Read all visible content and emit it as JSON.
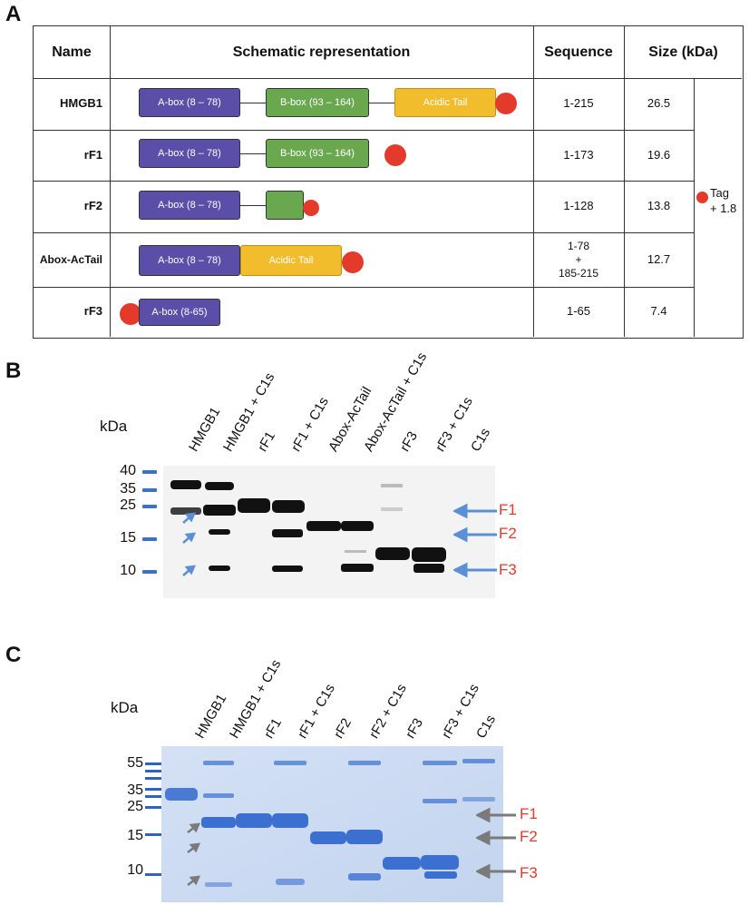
{
  "panels": {
    "a": "A",
    "b": "B",
    "c": "C"
  },
  "table": {
    "headers": {
      "name": "Name",
      "schematic": "Schematic representation",
      "sequence": "Sequence",
      "size": "Size (kDa)"
    },
    "rows": [
      {
        "name": "HMGB1",
        "sequence": "1-215",
        "size": "26.5"
      },
      {
        "name": "rF1",
        "sequence": "1-173",
        "size": "19.6"
      },
      {
        "name": "rF2",
        "sequence": "1-128",
        "size": "13.8"
      },
      {
        "name": "Abox-AcTail",
        "sequence_lines": [
          "1-78",
          "+",
          "185-215"
        ],
        "size": "12.7"
      },
      {
        "name": "rF3",
        "sequence": "1-65",
        "size": "7.4"
      }
    ],
    "domains": {
      "abox": "A-box (8 – 78)",
      "bbox": "B-box (93 – 164)",
      "tail": "Acidic Tail",
      "abox_short": "A-box (8-65)"
    },
    "tag_note": {
      "line1": "Tag",
      "line2": "+ 1.8"
    }
  },
  "gel_b": {
    "kda_label": "kDa",
    "lanes": [
      "HMGB1",
      "HMGB1 + C1s",
      "rF1",
      "rF1 + C1s",
      "Abox-AcTail",
      "Abox-AcTail + C1s",
      "rF3",
      "rF3 + C1s",
      "C1s"
    ],
    "markers": [
      "40",
      "35",
      "25",
      "15",
      "10"
    ],
    "fragments": [
      "F1",
      "F2",
      "F3"
    ]
  },
  "gel_c": {
    "kda_label": "kDa",
    "lanes": [
      "HMGB1",
      "HMGB1 + C1s",
      "rF1",
      "rF1 + C1s",
      "rF2",
      "rF2 + C1s",
      "rF3",
      "rF3 + C1s",
      "C1s"
    ],
    "markers": [
      "55",
      "35",
      "25",
      "15",
      "10"
    ],
    "fragments": [
      "F1",
      "F2",
      "F3"
    ]
  },
  "colors": {
    "abox": "#5b4ea8",
    "bbox": "#6aa84f",
    "tail": "#f2bd2c",
    "tag": "#e33a2b",
    "arrow_blue": "#5b8fd6",
    "arrow_gray": "#7a7a7a",
    "coomassie": "#4f82d6"
  }
}
